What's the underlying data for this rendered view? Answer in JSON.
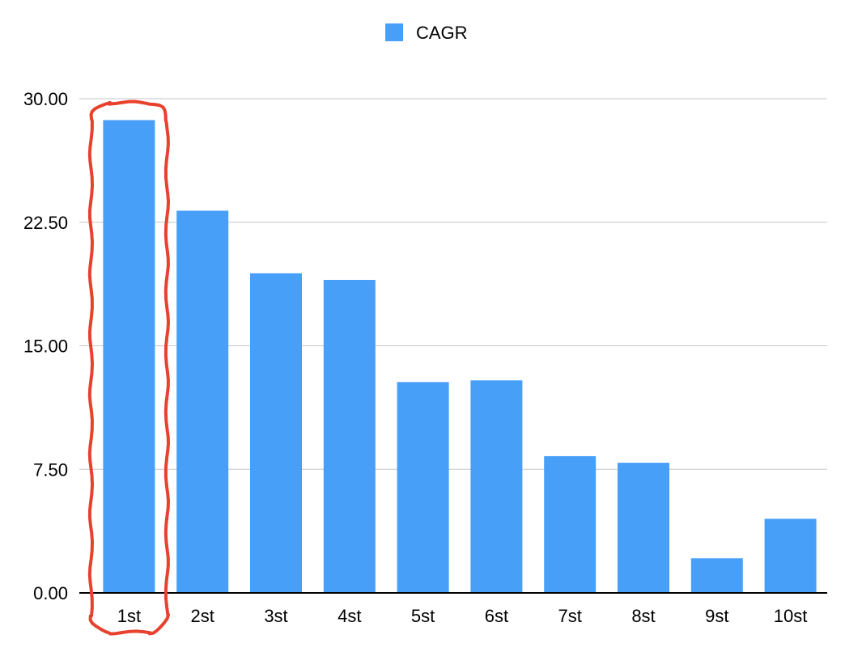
{
  "chart_data": {
    "type": "bar",
    "categories": [
      "1st",
      "2st",
      "3st",
      "4st",
      "5st",
      "6st",
      "7st",
      "8st",
      "9st",
      "10st"
    ],
    "series": [
      {
        "name": "CAGR",
        "values": [
          28.7,
          23.2,
          19.4,
          19.0,
          12.8,
          12.9,
          8.3,
          7.9,
          2.1,
          4.5
        ],
        "color": "#479ff8"
      }
    ],
    "title": "",
    "xlabel": "",
    "ylabel": "",
    "ylim": [
      0,
      30
    ],
    "yticks": [
      "0.00",
      "7.50",
      "15.00",
      "22.50",
      "30.00"
    ],
    "grid": true,
    "legend_position": "top-center",
    "highlight": {
      "category": "1st",
      "style": "hand-drawn red outline",
      "color": "#e8412e"
    }
  }
}
